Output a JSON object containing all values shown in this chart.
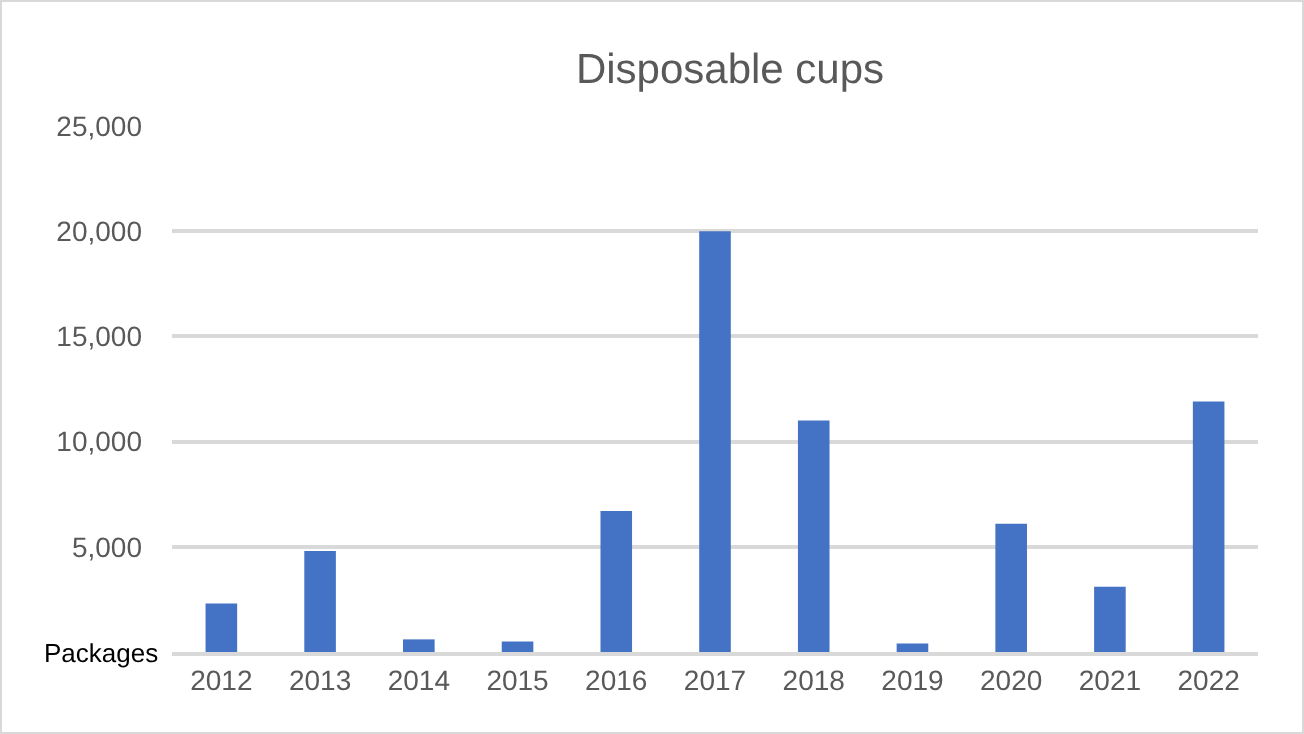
{
  "chart_data": {
    "type": "bar",
    "title": "Disposable cups",
    "ylabel": "Packages",
    "categories": [
      "2012",
      "2013",
      "2014",
      "2015",
      "2016",
      "2017",
      "2018",
      "2019",
      "2020",
      "2021",
      "2022"
    ],
    "values": [
      2300,
      4800,
      600,
      500,
      6700,
      20000,
      11000,
      400,
      6100,
      3100,
      11900
    ],
    "color": "#4472c4",
    "ylim": [
      0,
      25000
    ],
    "yticks": [
      {
        "value": 0,
        "label": null
      },
      {
        "value": 5000,
        "label": "5,000"
      },
      {
        "value": 10000,
        "label": "10,000"
      },
      {
        "value": 15000,
        "label": "15,000"
      },
      {
        "value": 20000,
        "label": "20,000"
      },
      {
        "value": 25000,
        "label": "25,000"
      }
    ],
    "grid": "y"
  }
}
